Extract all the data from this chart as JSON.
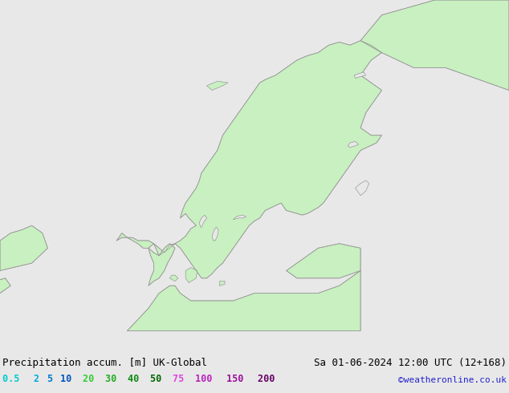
{
  "title_left": "Precipitation accum. [m] UK-Global",
  "title_right": "Sa 01-06-2024 12:00 UTC (12+168)",
  "credit": "©weatheronline.co.uk",
  "legend_values": [
    "0.5",
    "2",
    "5",
    "10",
    "20",
    "30",
    "40",
    "50",
    "75",
    "100",
    "150",
    "200"
  ],
  "legend_colors": [
    "#00cccc",
    "#00aadd",
    "#0077cc",
    "#0055bb",
    "#33cc33",
    "#22aa22",
    "#118811",
    "#006600",
    "#dd44dd",
    "#bb22bb",
    "#991199",
    "#660066"
  ],
  "bg_color": "#e8e8e8",
  "land_fill_color": "#c8f0c0",
  "border_color": "#999999",
  "sea_color": "#e8e8e8",
  "text_color": "#000000",
  "title_fontsize": 9,
  "legend_fontsize": 8.5,
  "credit_color": "#2222cc",
  "credit_fontsize": 8,
  "fig_width": 6.34,
  "fig_height": 4.9,
  "dpi": 100
}
